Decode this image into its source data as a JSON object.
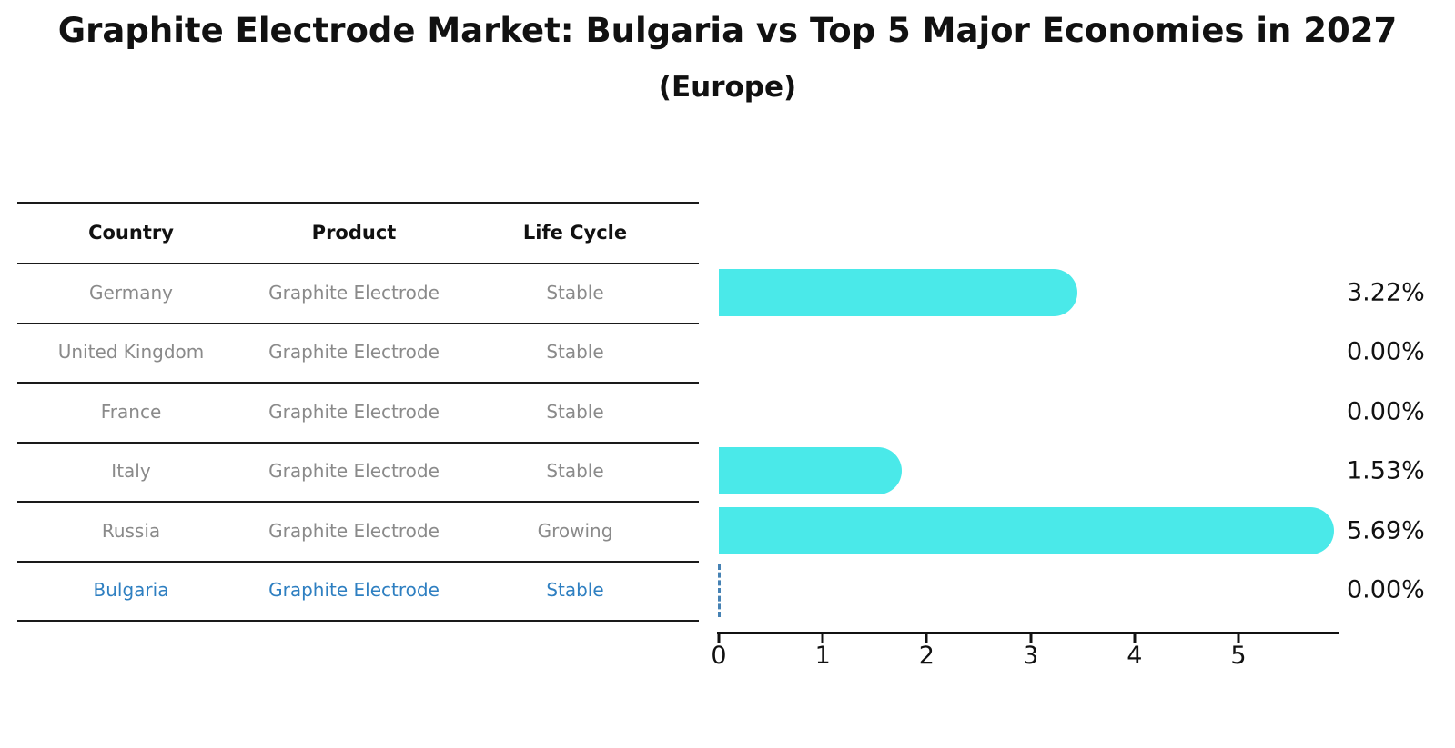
{
  "title": "Graphite Electrode Market: Bulgaria vs Top 5 Major Economies in 2027",
  "subtitle": "(Europe)",
  "table": {
    "headers": [
      "Country",
      "Product",
      "Life Cycle"
    ],
    "rows": [
      {
        "country": "Germany",
        "product": "Graphite Electrode",
        "life_cycle": "Stable",
        "value_label": "3.22%",
        "highlighted": false
      },
      {
        "country": "United Kingdom",
        "product": "Graphite Electrode",
        "life_cycle": "Stable",
        "value_label": "0.00%",
        "highlighted": false
      },
      {
        "country": "France",
        "product": "Graphite Electrode",
        "life_cycle": "Stable",
        "value_label": "0.00%",
        "highlighted": false
      },
      {
        "country": "Italy",
        "product": "Graphite Electrode",
        "life_cycle": "Stable",
        "value_label": "1.53%",
        "highlighted": false
      },
      {
        "country": "Russia",
        "product": "Graphite Electrode",
        "life_cycle": "Growing",
        "value_label": "5.69%",
        "highlighted": false
      },
      {
        "country": "Bulgaria",
        "product": "Graphite Electrode",
        "life_cycle": "Stable",
        "value_label": "0.00%",
        "highlighted": true
      }
    ]
  },
  "chart_data": {
    "type": "bar",
    "orientation": "horizontal",
    "title": "Graphite Electrode Market: Bulgaria vs Top 5 Major Economies in 2027 (Europe)",
    "categories": [
      "Germany",
      "United Kingdom",
      "France",
      "Italy",
      "Russia",
      "Bulgaria"
    ],
    "values": [
      3.22,
      0.0,
      0.0,
      1.53,
      5.69,
      0.0
    ],
    "value_labels": [
      "3.22%",
      "0.00%",
      "0.00%",
      "1.53%",
      "5.69%",
      "0.00%"
    ],
    "xlabel": "",
    "ylabel": "",
    "xlim": [
      0,
      6
    ],
    "x_ticks": [
      "0",
      "1",
      "2",
      "3",
      "4",
      "5"
    ],
    "grid": false,
    "legend": false,
    "bar_color": "#4AE9E9",
    "highlight_marker": {
      "category": "Bulgaria",
      "value": 0.0,
      "style": "dashed-vertical-line",
      "color": "#4682B4"
    }
  },
  "colors": {
    "bar": "#4AE9E9",
    "row_text": "#8a8a8a",
    "highlight_text": "#2E7FC1",
    "marker_line": "#4682B4",
    "axis": "#111111",
    "title_text": "#111111",
    "background": "#ffffff"
  }
}
